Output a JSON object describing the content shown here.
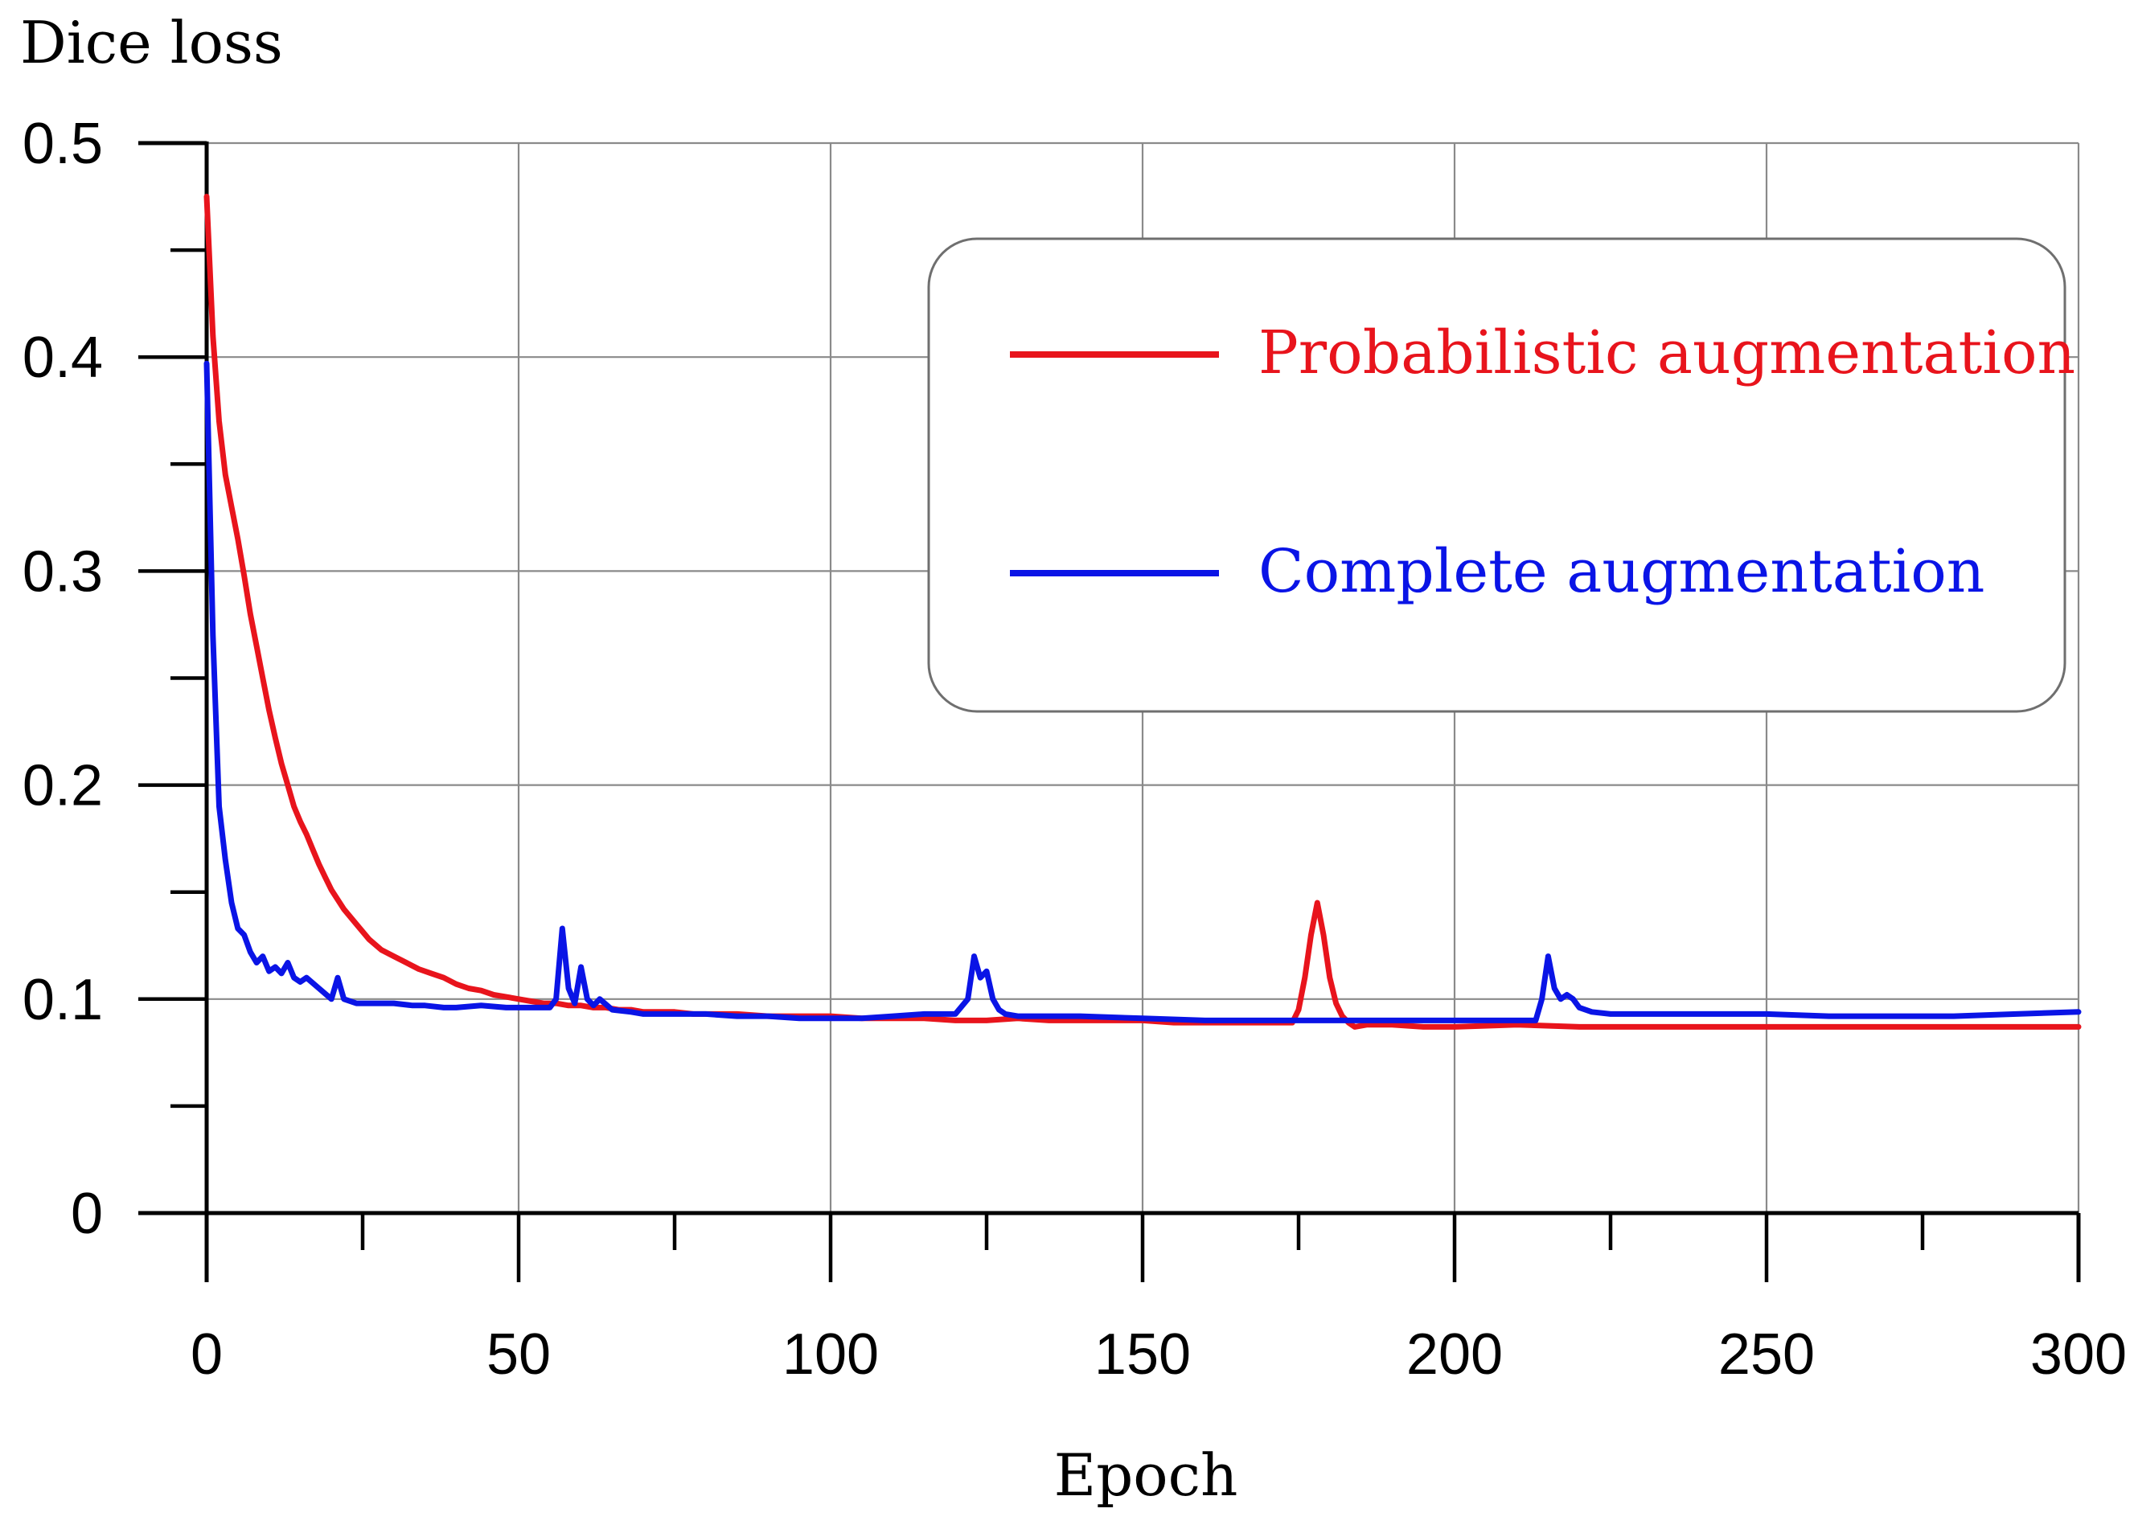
{
  "chart_data": {
    "type": "line",
    "xlabel": "Epoch",
    "ylabel": "Dice loss",
    "xlim": [
      0,
      300
    ],
    "ylim": [
      0,
      0.5
    ],
    "xticks": [
      0,
      50,
      100,
      150,
      200,
      250,
      300
    ],
    "xtick_labels": [
      "0",
      "50",
      "100",
      "150",
      "200",
      "250",
      "300"
    ],
    "yticks": [
      0,
      0.1,
      0.2,
      0.3,
      0.4,
      0.5
    ],
    "ytick_labels": [
      "0",
      "0.1",
      "0.2",
      "0.3",
      "0.4",
      "0.5"
    ],
    "x_minor_step": 25,
    "y_minor_step": 0.05,
    "grid": true,
    "legend_position": "top-right",
    "series": [
      {
        "name": "Probabilistic augmentation",
        "color": "#e8141c",
        "x": [
          0,
          1,
          2,
          3,
          4,
          5,
          6,
          7,
          8,
          9,
          10,
          11,
          12,
          13,
          14,
          15,
          16,
          17,
          18,
          19,
          20,
          22,
          24,
          26,
          28,
          30,
          32,
          34,
          36,
          38,
          40,
          42,
          44,
          46,
          48,
          50,
          52,
          54,
          56,
          58,
          60,
          62,
          64,
          66,
          68,
          70,
          72,
          75,
          78,
          80,
          85,
          90,
          95,
          100,
          105,
          110,
          115,
          120,
          125,
          130,
          135,
          140,
          145,
          150,
          155,
          160,
          165,
          170,
          174,
          175,
          176,
          177,
          178,
          179,
          180,
          181,
          182,
          183,
          184,
          186,
          190,
          195,
          200,
          210,
          220,
          230,
          240,
          250,
          260,
          270,
          280,
          290,
          300
        ],
        "y": [
          0.475,
          0.41,
          0.37,
          0.345,
          0.33,
          0.315,
          0.298,
          0.28,
          0.265,
          0.25,
          0.235,
          0.222,
          0.21,
          0.2,
          0.19,
          0.183,
          0.177,
          0.17,
          0.163,
          0.157,
          0.151,
          0.142,
          0.135,
          0.128,
          0.123,
          0.12,
          0.117,
          0.114,
          0.112,
          0.11,
          0.107,
          0.105,
          0.104,
          0.102,
          0.101,
          0.1,
          0.099,
          0.098,
          0.098,
          0.097,
          0.097,
          0.096,
          0.096,
          0.095,
          0.095,
          0.094,
          0.094,
          0.094,
          0.093,
          0.093,
          0.093,
          0.092,
          0.092,
          0.092,
          0.091,
          0.091,
          0.091,
          0.09,
          0.09,
          0.091,
          0.09,
          0.09,
          0.09,
          0.09,
          0.089,
          0.089,
          0.089,
          0.089,
          0.089,
          0.095,
          0.11,
          0.13,
          0.145,
          0.13,
          0.11,
          0.098,
          0.092,
          0.089,
          0.087,
          0.088,
          0.088,
          0.087,
          0.087,
          0.088,
          0.087,
          0.087,
          0.087,
          0.087,
          0.087,
          0.087,
          0.087,
          0.087,
          0.087
        ]
      },
      {
        "name": "Complete augmentation",
        "color": "#0a14e6",
        "x": [
          0,
          1,
          2,
          3,
          4,
          5,
          6,
          7,
          8,
          9,
          10,
          11,
          12,
          13,
          14,
          15,
          16,
          18,
          20,
          21,
          22,
          24,
          26,
          28,
          30,
          33,
          35,
          38,
          40,
          44,
          48,
          52,
          55,
          56,
          57,
          58,
          59,
          60,
          61,
          62,
          63,
          65,
          68,
          70,
          75,
          80,
          85,
          90,
          95,
          100,
          105,
          110,
          115,
          120,
          122,
          123,
          124,
          125,
          126,
          127,
          128,
          130,
          135,
          140,
          150,
          160,
          170,
          180,
          190,
          200,
          210,
          213,
          214,
          215,
          216,
          217,
          218,
          219,
          220,
          222,
          225,
          230,
          240,
          250,
          260,
          270,
          280,
          290,
          300
        ],
        "y": [
          0.397,
          0.27,
          0.19,
          0.165,
          0.145,
          0.133,
          0.13,
          0.122,
          0.117,
          0.12,
          0.113,
          0.115,
          0.112,
          0.117,
          0.11,
          0.108,
          0.11,
          0.105,
          0.1,
          0.11,
          0.1,
          0.098,
          0.098,
          0.098,
          0.098,
          0.097,
          0.097,
          0.096,
          0.096,
          0.097,
          0.096,
          0.096,
          0.096,
          0.1,
          0.133,
          0.105,
          0.098,
          0.115,
          0.1,
          0.097,
          0.1,
          0.095,
          0.094,
          0.093,
          0.093,
          0.093,
          0.092,
          0.092,
          0.091,
          0.091,
          0.091,
          0.092,
          0.093,
          0.093,
          0.1,
          0.12,
          0.11,
          0.113,
          0.1,
          0.095,
          0.093,
          0.092,
          0.092,
          0.092,
          0.091,
          0.09,
          0.09,
          0.09,
          0.09,
          0.09,
          0.09,
          0.09,
          0.1,
          0.12,
          0.105,
          0.1,
          0.102,
          0.1,
          0.096,
          0.094,
          0.093,
          0.093,
          0.093,
          0.093,
          0.092,
          0.092,
          0.092,
          0.093,
          0.094
        ]
      }
    ]
  }
}
